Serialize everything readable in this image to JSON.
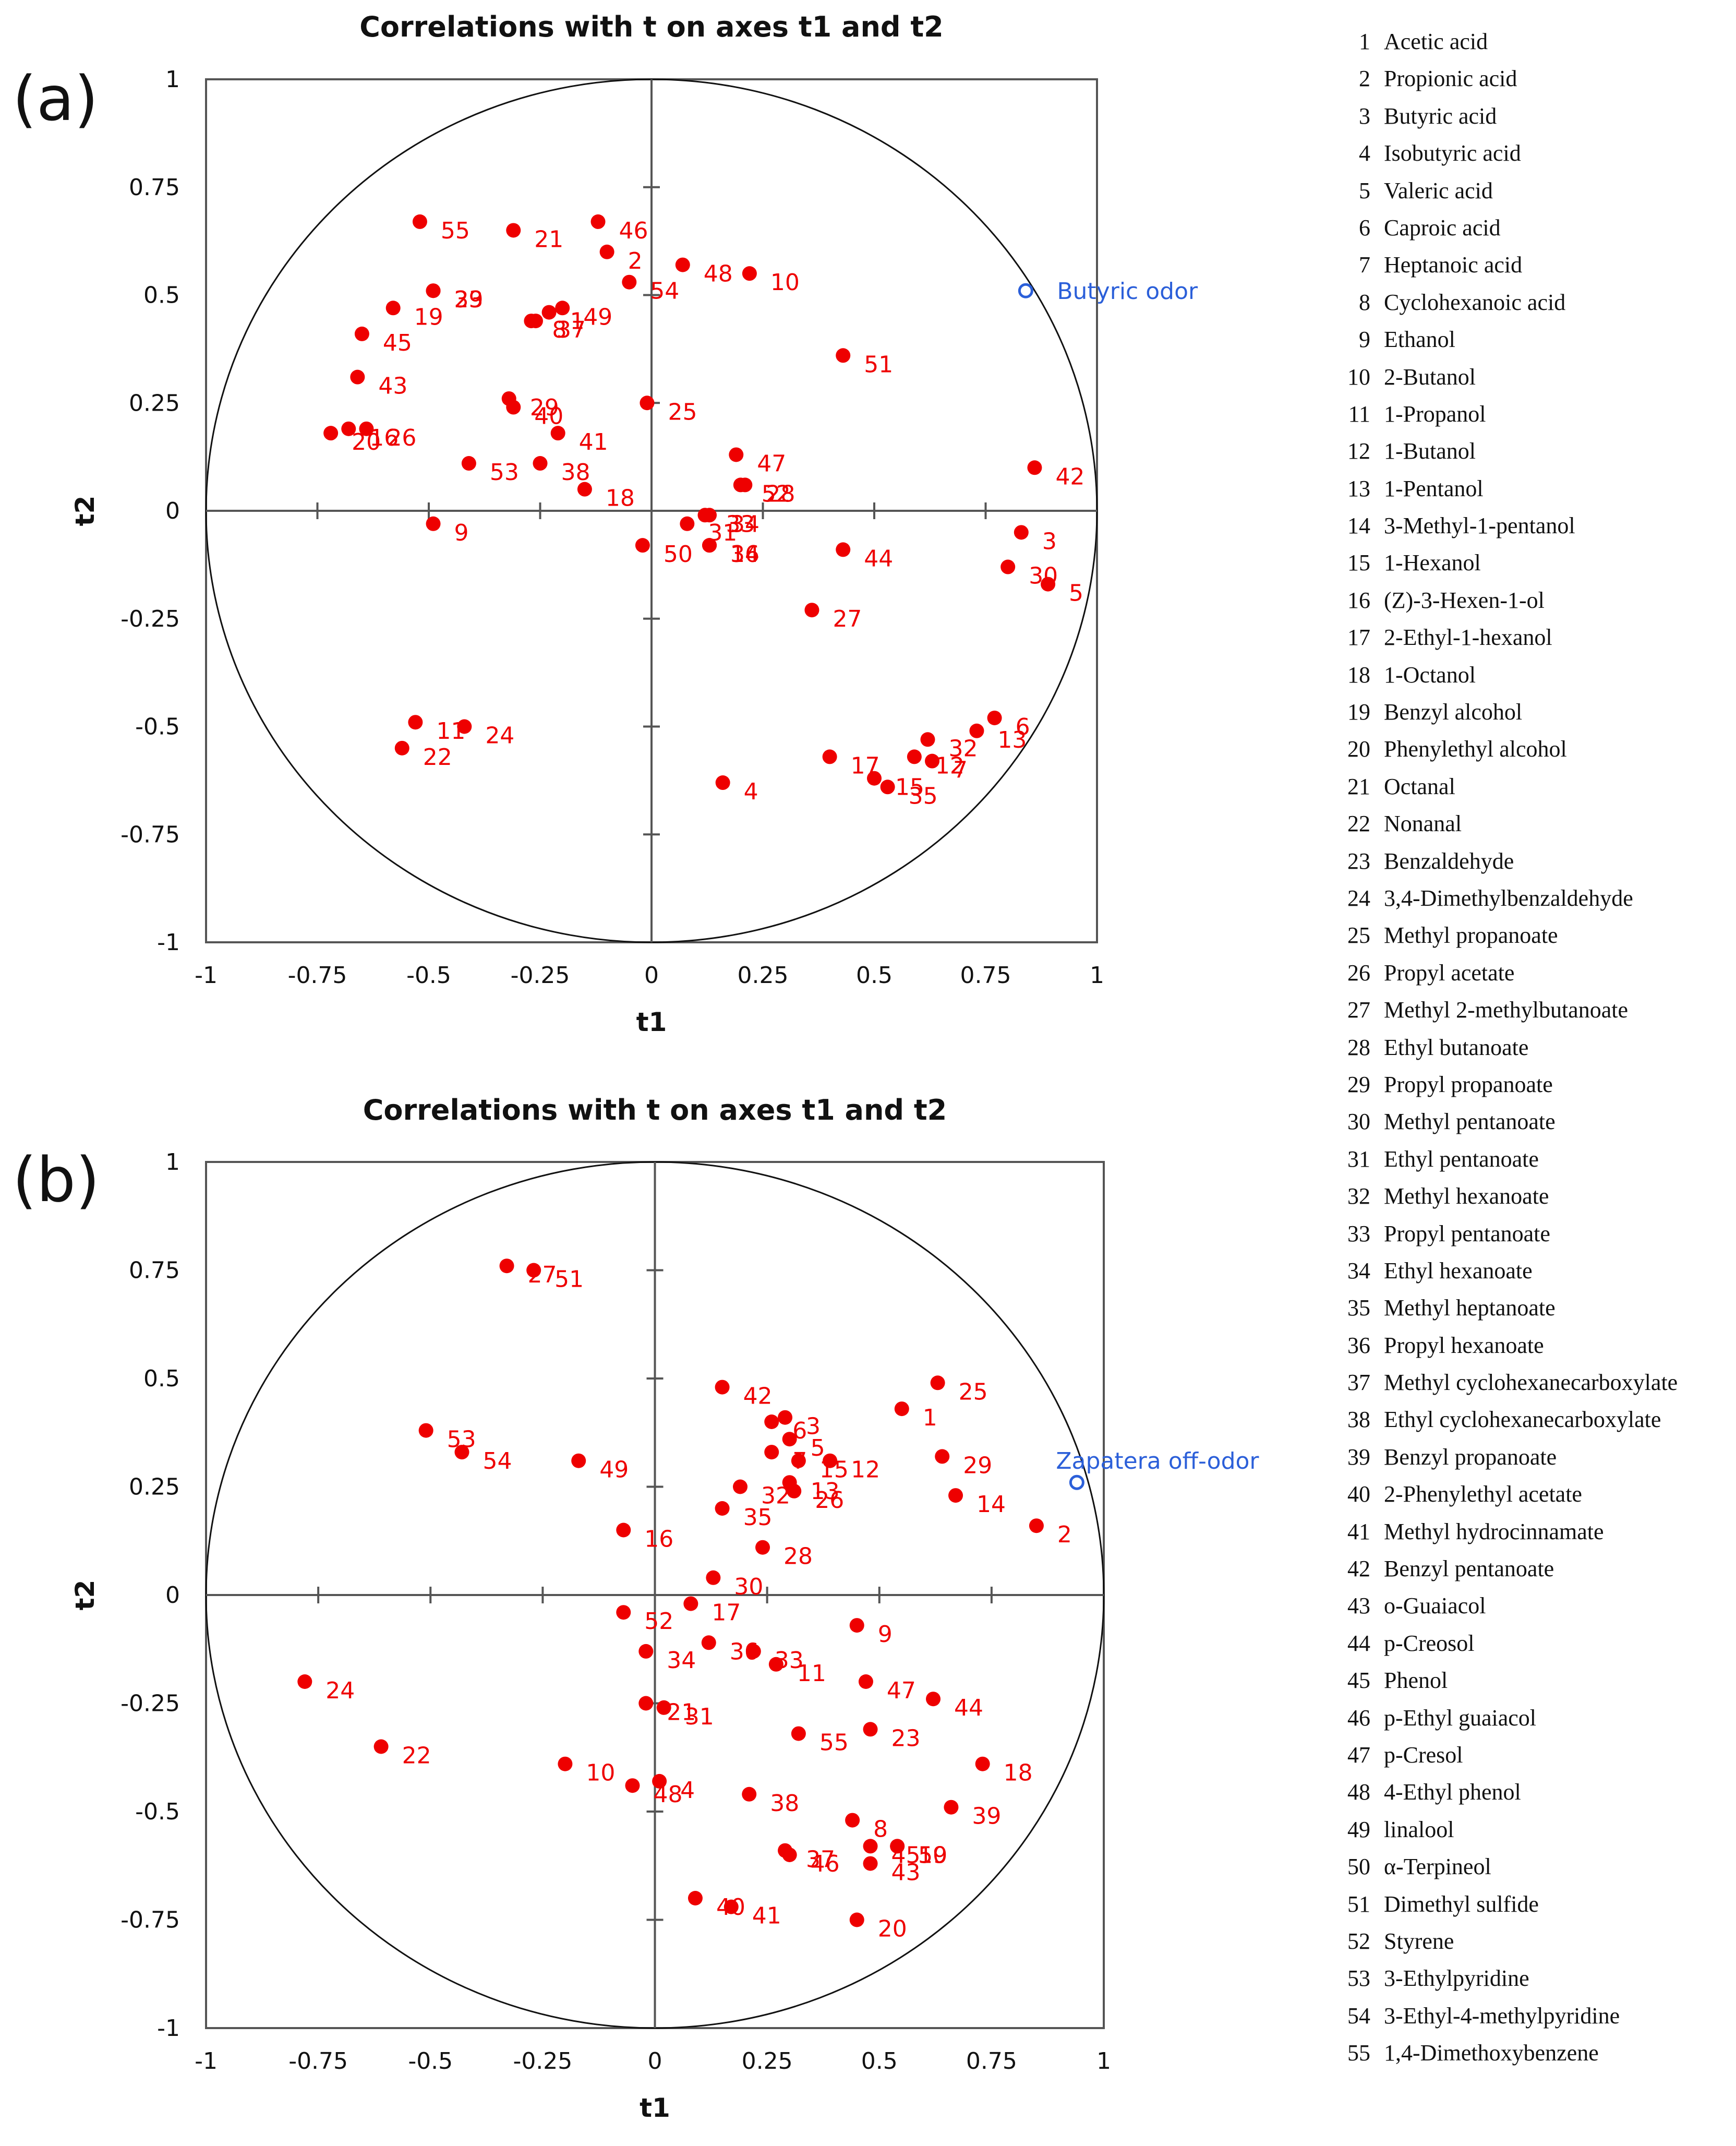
{
  "colors": {
    "points": "#ee0000",
    "variable": "#2b5fd9",
    "axes": "#555555"
  },
  "chart_data": [
    {
      "type": "scatter",
      "panel_label": "(a)",
      "title": "Correlations with t on axes t1 and t2",
      "xlabel": "t1",
      "ylabel": "t2",
      "xlim": [
        -1,
        1
      ],
      "ylim": [
        -1,
        1
      ],
      "xticks": [
        "-1",
        "-0.75",
        "-0.5",
        "-0.25",
        "0",
        "0.25",
        "0.5",
        "0.75",
        "1"
      ],
      "yticks": [
        "1",
        "0.75",
        "0.5",
        "0.25",
        "0",
        "-0.25",
        "-0.5",
        "-0.75",
        "-1"
      ],
      "correlation_circle": true,
      "variable": {
        "label": "Butyric odor",
        "x": 0.84,
        "y": 0.51
      },
      "points": [
        {
          "label": "1",
          "x": -0.23,
          "y": 0.46
        },
        {
          "label": "2",
          "x": -0.1,
          "y": 0.6
        },
        {
          "label": "3",
          "x": 0.83,
          "y": -0.05
        },
        {
          "label": "4",
          "x": 0.16,
          "y": -0.63
        },
        {
          "label": "5",
          "x": 0.89,
          "y": -0.17
        },
        {
          "label": "6",
          "x": 0.77,
          "y": -0.48
        },
        {
          "label": "7",
          "x": 0.63,
          "y": -0.58
        },
        {
          "label": "8",
          "x": -0.27,
          "y": 0.44
        },
        {
          "label": "9",
          "x": -0.49,
          "y": -0.03
        },
        {
          "label": "10",
          "x": 0.22,
          "y": 0.55
        },
        {
          "label": "11",
          "x": -0.53,
          "y": -0.49
        },
        {
          "label": "12",
          "x": 0.59,
          "y": -0.57
        },
        {
          "label": "13",
          "x": 0.73,
          "y": -0.51
        },
        {
          "label": "14",
          "x": 0.13,
          "y": -0.08
        },
        {
          "label": "15",
          "x": 0.5,
          "y": -0.62
        },
        {
          "label": "16",
          "x": -0.68,
          "y": 0.19
        },
        {
          "label": "17",
          "x": 0.4,
          "y": -0.57
        },
        {
          "label": "18",
          "x": -0.15,
          "y": 0.05
        },
        {
          "label": "19",
          "x": -0.58,
          "y": 0.47
        },
        {
          "label": "20",
          "x": -0.72,
          "y": 0.18
        },
        {
          "label": "21",
          "x": -0.31,
          "y": 0.65
        },
        {
          "label": "22",
          "x": -0.56,
          "y": -0.55
        },
        {
          "label": "23",
          "x": -0.49,
          "y": 0.51
        },
        {
          "label": "24",
          "x": -0.42,
          "y": -0.5
        },
        {
          "label": "25",
          "x": -0.01,
          "y": 0.25
        },
        {
          "label": "26",
          "x": -0.64,
          "y": 0.19
        },
        {
          "label": "27",
          "x": 0.36,
          "y": -0.23
        },
        {
          "label": "28",
          "x": 0.21,
          "y": 0.06
        },
        {
          "label": "29",
          "x": -0.32,
          "y": 0.26
        },
        {
          "label": "30",
          "x": 0.8,
          "y": -0.13
        },
        {
          "label": "31",
          "x": 0.08,
          "y": -0.03
        },
        {
          "label": "32",
          "x": 0.62,
          "y": -0.53
        },
        {
          "label": "33",
          "x": 0.12,
          "y": -0.01
        },
        {
          "label": "34",
          "x": 0.13,
          "y": -0.01
        },
        {
          "label": "35",
          "x": 0.53,
          "y": -0.64
        },
        {
          "label": "36",
          "x": 0.13,
          "y": -0.08
        },
        {
          "label": "37",
          "x": -0.26,
          "y": 0.44
        },
        {
          "label": "38",
          "x": -0.25,
          "y": 0.11
        },
        {
          "label": "39",
          "x": -0.49,
          "y": 0.51
        },
        {
          "label": "40",
          "x": -0.31,
          "y": 0.24
        },
        {
          "label": "41",
          "x": -0.21,
          "y": 0.18
        },
        {
          "label": "42",
          "x": 0.86,
          "y": 0.1
        },
        {
          "label": "43",
          "x": -0.66,
          "y": 0.31
        },
        {
          "label": "44",
          "x": 0.43,
          "y": -0.09
        },
        {
          "label": "45",
          "x": -0.65,
          "y": 0.41
        },
        {
          "label": "46",
          "x": -0.12,
          "y": 0.67
        },
        {
          "label": "47",
          "x": 0.19,
          "y": 0.13
        },
        {
          "label": "48",
          "x": 0.07,
          "y": 0.57
        },
        {
          "label": "49",
          "x": -0.2,
          "y": 0.47
        },
        {
          "label": "50",
          "x": -0.02,
          "y": -0.08
        },
        {
          "label": "51",
          "x": 0.43,
          "y": 0.36
        },
        {
          "label": "52",
          "x": 0.2,
          "y": 0.06
        },
        {
          "label": "53",
          "x": -0.41,
          "y": 0.11
        },
        {
          "label": "54",
          "x": -0.05,
          "y": 0.53
        },
        {
          "label": "55",
          "x": -0.52,
          "y": 0.67
        }
      ]
    },
    {
      "type": "scatter",
      "panel_label": "(b)",
      "title": "Correlations with t on axes t1 and t2",
      "xlabel": "t1",
      "ylabel": "t2",
      "xlim": [
        -1,
        1
      ],
      "ylim": [
        -1,
        1
      ],
      "xticks": [
        "-1",
        "-0.75",
        "-0.5",
        "-0.25",
        "0",
        "0.25",
        "0.5",
        "0.75",
        "1"
      ],
      "yticks": [
        "1",
        "0.75",
        "0.5",
        "0.25",
        "0",
        "-0.25",
        "-0.5",
        "-0.75",
        "-1"
      ],
      "correlation_circle": true,
      "variable": {
        "label": "Zapatera off-odor",
        "x": 0.94,
        "y": 0.26
      },
      "points": [
        {
          "label": "1",
          "x": 0.55,
          "y": 0.43
        },
        {
          "label": "2",
          "x": 0.85,
          "y": 0.16
        },
        {
          "label": "3",
          "x": 0.29,
          "y": 0.41
        },
        {
          "label": "4",
          "x": 0.01,
          "y": -0.43
        },
        {
          "label": "5",
          "x": 0.3,
          "y": 0.36
        },
        {
          "label": "6",
          "x": 0.26,
          "y": 0.4
        },
        {
          "label": "7",
          "x": 0.26,
          "y": 0.33
        },
        {
          "label": "8",
          "x": 0.44,
          "y": -0.52
        },
        {
          "label": "9",
          "x": 0.45,
          "y": -0.07
        },
        {
          "label": "10",
          "x": -0.2,
          "y": -0.39
        },
        {
          "label": "11",
          "x": 0.27,
          "y": -0.16
        },
        {
          "label": "12",
          "x": 0.39,
          "y": 0.31
        },
        {
          "label": "13",
          "x": 0.3,
          "y": 0.26
        },
        {
          "label": "14",
          "x": 0.67,
          "y": 0.23
        },
        {
          "label": "15",
          "x": 0.32,
          "y": 0.31
        },
        {
          "label": "16",
          "x": -0.07,
          "y": 0.15
        },
        {
          "label": "17",
          "x": 0.08,
          "y": -0.02
        },
        {
          "label": "18",
          "x": 0.73,
          "y": -0.39
        },
        {
          "label": "19",
          "x": 0.54,
          "y": -0.58
        },
        {
          "label": "20",
          "x": 0.45,
          "y": -0.75
        },
        {
          "label": "21",
          "x": -0.02,
          "y": -0.25
        },
        {
          "label": "22",
          "x": -0.61,
          "y": -0.35
        },
        {
          "label": "23",
          "x": 0.48,
          "y": -0.31
        },
        {
          "label": "24",
          "x": -0.78,
          "y": -0.2
        },
        {
          "label": "25",
          "x": 0.63,
          "y": 0.49
        },
        {
          "label": "26",
          "x": 0.31,
          "y": 0.24
        },
        {
          "label": "27",
          "x": -0.33,
          "y": 0.76
        },
        {
          "label": "28",
          "x": 0.24,
          "y": 0.11
        },
        {
          "label": "29",
          "x": 0.64,
          "y": 0.32
        },
        {
          "label": "30",
          "x": 0.13,
          "y": 0.04
        },
        {
          "label": "31",
          "x": 0.02,
          "y": -0.26
        },
        {
          "label": "32",
          "x": 0.19,
          "y": 0.25
        },
        {
          "label": "33",
          "x": 0.22,
          "y": -0.13
        },
        {
          "label": "34",
          "x": -0.02,
          "y": -0.13
        },
        {
          "label": "35",
          "x": 0.15,
          "y": 0.2
        },
        {
          "label": "36",
          "x": 0.12,
          "y": -0.11
        },
        {
          "label": "37",
          "x": 0.29,
          "y": -0.59
        },
        {
          "label": "38",
          "x": 0.21,
          "y": -0.46
        },
        {
          "label": "39",
          "x": 0.66,
          "y": -0.49
        },
        {
          "label": "40",
          "x": 0.09,
          "y": -0.7
        },
        {
          "label": "41",
          "x": 0.17,
          "y": -0.72
        },
        {
          "label": "42",
          "x": 0.15,
          "y": 0.48
        },
        {
          "label": "43",
          "x": 0.48,
          "y": -0.62
        },
        {
          "label": "44",
          "x": 0.62,
          "y": -0.24
        },
        {
          "label": "45",
          "x": 0.48,
          "y": -0.58
        },
        {
          "label": "46",
          "x": 0.3,
          "y": -0.6
        },
        {
          "label": "47",
          "x": 0.47,
          "y": -0.2
        },
        {
          "label": "48",
          "x": -0.05,
          "y": -0.44
        },
        {
          "label": "49",
          "x": -0.17,
          "y": 0.31
        },
        {
          "label": "50",
          "x": 0.54,
          "y": -0.58
        },
        {
          "label": "51",
          "x": -0.27,
          "y": 0.75
        },
        {
          "label": "52",
          "x": -0.07,
          "y": -0.04
        },
        {
          "label": "53",
          "x": -0.51,
          "y": 0.38
        },
        {
          "label": "54",
          "x": -0.43,
          "y": 0.33
        },
        {
          "label": "55",
          "x": 0.32,
          "y": -0.32
        }
      ]
    }
  ],
  "legend": [
    {
      "num": "1",
      "name": "Acetic acid"
    },
    {
      "num": "2",
      "name": "Propionic acid"
    },
    {
      "num": "3",
      "name": "Butyric acid"
    },
    {
      "num": "4",
      "name": "Isobutyric acid"
    },
    {
      "num": "5",
      "name": "Valeric acid"
    },
    {
      "num": "6",
      "name": "Caproic acid"
    },
    {
      "num": "7",
      "name": "Heptanoic acid"
    },
    {
      "num": "8",
      "name": "Cyclohexanoic acid"
    },
    {
      "num": "9",
      "name": "Ethanol"
    },
    {
      "num": "10",
      "name": "2-Butanol"
    },
    {
      "num": "11",
      "name": "1-Propanol"
    },
    {
      "num": "12",
      "name": "1-Butanol"
    },
    {
      "num": "13",
      "name": "1-Pentanol"
    },
    {
      "num": "14",
      "name": "3-Methyl-1-pentanol"
    },
    {
      "num": "15",
      "name": "1-Hexanol"
    },
    {
      "num": "16",
      "name": "(Z)-3-Hexen-1-ol"
    },
    {
      "num": "17",
      "name": "2-Ethyl-1-hexanol"
    },
    {
      "num": "18",
      "name": "1-Octanol"
    },
    {
      "num": "19",
      "name": "Benzyl alcohol"
    },
    {
      "num": "20",
      "name": "Phenylethyl alcohol"
    },
    {
      "num": "21",
      "name": "Octanal"
    },
    {
      "num": "22",
      "name": "Nonanal"
    },
    {
      "num": "23",
      "name": "Benzaldehyde"
    },
    {
      "num": "24",
      "name": "3,4-Dimethylbenzaldehyde"
    },
    {
      "num": "25",
      "name": "Methyl propanoate"
    },
    {
      "num": "26",
      "name": "Propyl acetate"
    },
    {
      "num": "27",
      "name": "Methyl 2-methylbutanoate"
    },
    {
      "num": "28",
      "name": "Ethyl butanoate"
    },
    {
      "num": "29",
      "name": "Propyl propanoate"
    },
    {
      "num": "30",
      "name": "Methyl pentanoate"
    },
    {
      "num": "31",
      "name": "Ethyl pentanoate"
    },
    {
      "num": "32",
      "name": "Methyl hexanoate"
    },
    {
      "num": "33",
      "name": "Propyl pentanoate"
    },
    {
      "num": "34",
      "name": "Ethyl hexanoate"
    },
    {
      "num": "35",
      "name": "Methyl heptanoate"
    },
    {
      "num": "36",
      "name": "Propyl hexanoate"
    },
    {
      "num": "37",
      "name": "Methyl cyclohexanecarboxylate"
    },
    {
      "num": "38",
      "name": "Ethyl cyclohexanecarboxylate"
    },
    {
      "num": "39",
      "name": "Benzyl propanoate"
    },
    {
      "num": "40",
      "name": "2-Phenylethyl acetate"
    },
    {
      "num": "41",
      "name": "Methyl hydrocinnamate"
    },
    {
      "num": "42",
      "name": "Benzyl pentanoate"
    },
    {
      "num": "43",
      "name": "o-Guaiacol"
    },
    {
      "num": "44",
      "name": "p-Creosol"
    },
    {
      "num": "45",
      "name": "Phenol"
    },
    {
      "num": "46",
      "name": "p-Ethyl guaiacol"
    },
    {
      "num": "47",
      "name": "p-Cresol"
    },
    {
      "num": "48",
      "name": "4-Ethyl phenol"
    },
    {
      "num": "49",
      "name": "linalool"
    },
    {
      "num": "50",
      "name": "α-Terpineol"
    },
    {
      "num": "51",
      "name": "Dimethyl sulfide"
    },
    {
      "num": "52",
      "name": "Styrene"
    },
    {
      "num": "53",
      "name": "3-Ethylpyridine"
    },
    {
      "num": "54",
      "name": "3-Ethyl-4-methylpyridine"
    },
    {
      "num": "55",
      "name": "1,4-Dimethoxybenzene"
    }
  ]
}
